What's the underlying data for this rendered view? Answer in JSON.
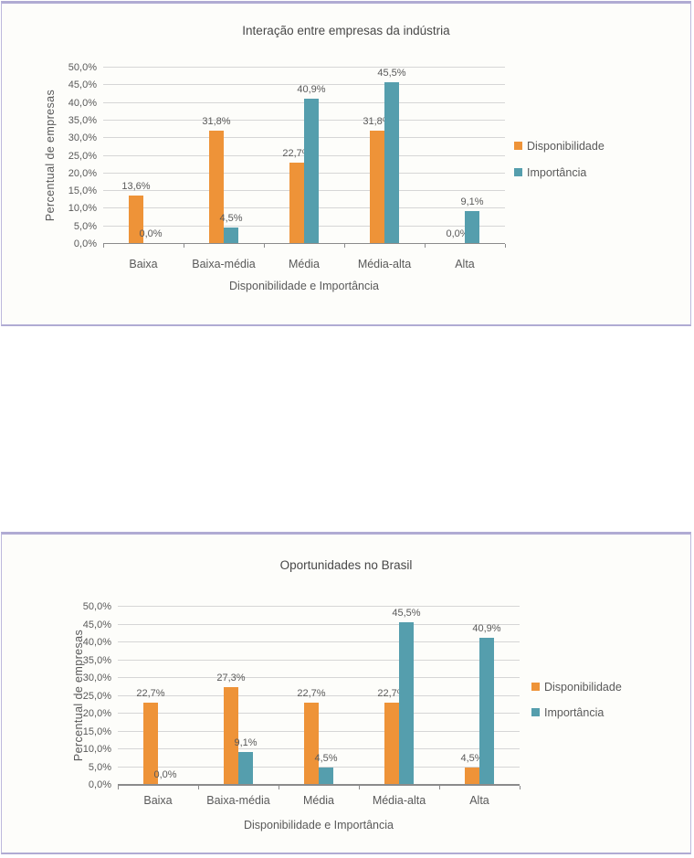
{
  "page": {
    "background": "#ffffff",
    "panel_background": "#fdfdfa",
    "panel_border_color": "#b0abd3"
  },
  "chart_data": [
    {
      "type": "bar",
      "title": "Interação entre empresas da indústria",
      "xlabel": "Disponibilidade e Importância",
      "ylabel": "Percentual de empresas",
      "ylim": [
        0,
        50
      ],
      "y_tick_step": 5,
      "grid": true,
      "legend_position": "right",
      "y_tick_labels": [
        "0,0%",
        "5,0%",
        "10,0%",
        "15,0%",
        "20,0%",
        "25,0%",
        "30,0%",
        "35,0%",
        "40,0%",
        "45,0%",
        "50,0%"
      ],
      "categories": [
        "Baixa",
        "Baixa-média",
        "Média",
        "Média-alta",
        "Alta"
      ],
      "series": [
        {
          "name": "Disponibilidade",
          "color": "#EE9338",
          "values": [
            13.6,
            31.8,
            22.7,
            31.8,
            0.0
          ],
          "labels": [
            "13,6%",
            "31,8%",
            "22,7%",
            "31,8%",
            "0,0%"
          ]
        },
        {
          "name": "Importância",
          "color": "#559EAD",
          "values": [
            0.0,
            4.5,
            40.9,
            45.5,
            9.1
          ],
          "labels": [
            "0,0%",
            "4,5%",
            "40,9%",
            "45,5%",
            "9,1%"
          ]
        }
      ]
    },
    {
      "type": "bar",
      "title": "Oportunidades no Brasil",
      "xlabel": "Disponibilidade e Importância",
      "ylabel": "Percentual de empresas",
      "ylim": [
        0,
        50
      ],
      "y_tick_step": 5,
      "grid": true,
      "legend_position": "right",
      "y_tick_labels": [
        "0,0%",
        "5,0%",
        "10,0%",
        "15,0%",
        "20,0%",
        "25,0%",
        "30,0%",
        "35,0%",
        "40,0%",
        "45,0%",
        "50,0%"
      ],
      "categories": [
        "Baixa",
        "Baixa-média",
        "Média",
        "Média-alta",
        "Alta"
      ],
      "series": [
        {
          "name": "Disponibilidade",
          "color": "#EE9338",
          "values": [
            22.7,
            27.3,
            22.7,
            22.7,
            4.5
          ],
          "labels": [
            "22,7%",
            "27,3%",
            "22,7%",
            "22,7%",
            "4,5%"
          ]
        },
        {
          "name": "Importância",
          "color": "#559EAD",
          "values": [
            0.0,
            9.1,
            4.5,
            45.5,
            40.9
          ],
          "labels": [
            "0,0%",
            "9,1%",
            "4,5%",
            "45,5%",
            "40,9%"
          ]
        }
      ]
    }
  ]
}
